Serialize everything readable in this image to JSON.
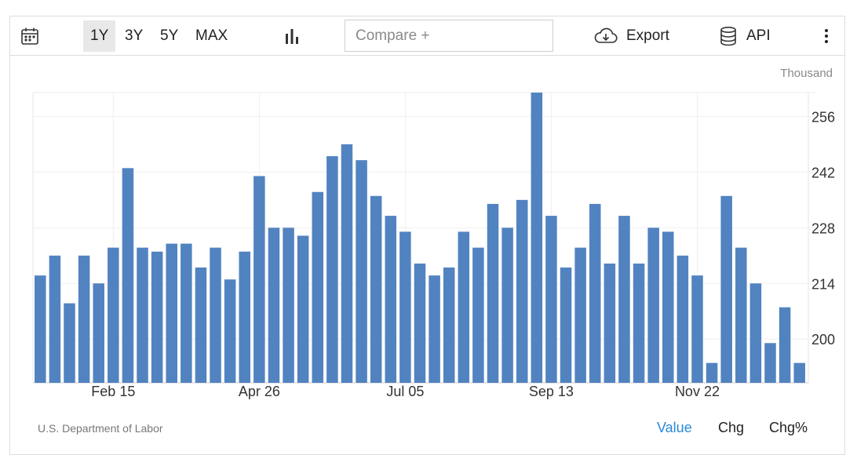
{
  "toolbar": {
    "ranges": [
      "1Y",
      "3Y",
      "5Y",
      "MAX"
    ],
    "active_range": "1Y",
    "compare_placeholder": "Compare +",
    "export_label": "Export",
    "api_label": "API"
  },
  "chart_data": {
    "type": "bar",
    "unit": "Thousand",
    "source": "U.S. Department of Labor",
    "color": "#5183c0",
    "ylim": [
      189,
      262
    ],
    "yticks": [
      200,
      214,
      228,
      242,
      256
    ],
    "xtick_labels": [
      {
        "label": "Feb 15",
        "index": 5
      },
      {
        "label": "Apr 26",
        "index": 15
      },
      {
        "label": "Jul 05",
        "index": 25
      },
      {
        "label": "Sep 13",
        "index": 35
      },
      {
        "label": "Nov 22",
        "index": 45
      }
    ],
    "values": [
      216,
      221,
      209,
      221,
      214,
      223,
      243,
      223,
      222,
      224,
      224,
      218,
      223,
      215,
      222,
      241,
      228,
      228,
      226,
      237,
      246,
      249,
      245,
      236,
      231,
      227,
      219,
      216,
      218,
      227,
      223,
      234,
      228,
      235,
      262,
      231,
      218,
      223,
      234,
      219,
      231,
      219,
      228,
      227,
      221,
      216,
      194,
      236,
      223,
      214,
      199,
      208,
      194
    ]
  },
  "view_tabs": [
    "Value",
    "Chg",
    "Chg%"
  ],
  "active_view": "Value",
  "colors": {
    "accent": "#2a8ad9",
    "bar": "#5183c0"
  }
}
